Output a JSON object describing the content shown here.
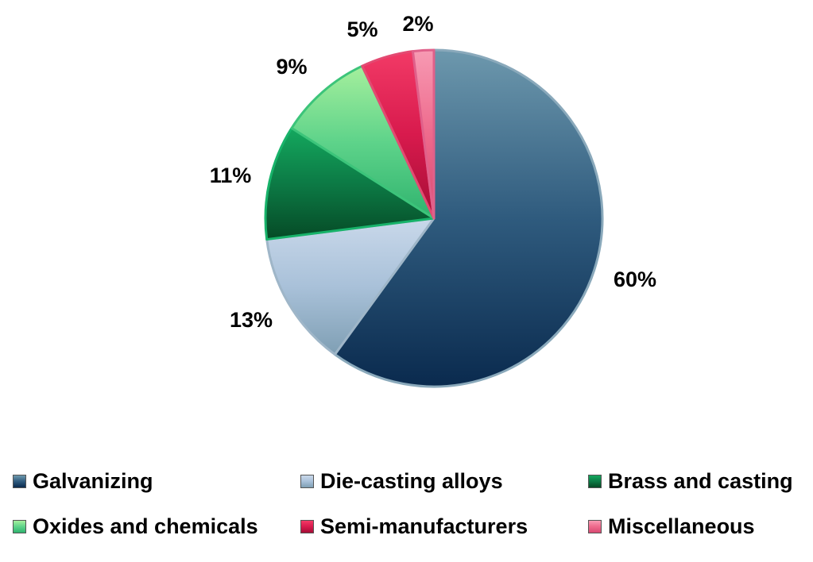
{
  "chart_data": {
    "type": "pie",
    "title": "",
    "slices": [
      {
        "label": "Galvanizing",
        "value": 60,
        "value_label": "60%",
        "color": "#2f5b7e",
        "color_light": "#6d98ad",
        "color_dark": "#0a2a4e",
        "edge": "#8aa9bb"
      },
      {
        "label": "Die-casting alloys",
        "value": 13,
        "value_label": "13%",
        "color": "#a9c1d9",
        "color_light": "#c9d8ea",
        "color_dark": "#7f9fb4",
        "edge": "#9fb6c8"
      },
      {
        "label": "Brass and casting",
        "value": 11,
        "value_label": "11%",
        "color": "#0c7a45",
        "color_light": "#14a85e",
        "color_dark": "#064a26",
        "edge": "#18b36a"
      },
      {
        "label": "Oxides and chemicals",
        "value": 9,
        "value_label": "9%",
        "color": "#5ed38a",
        "color_light": "#a5ef9d",
        "color_dark": "#2fb36e",
        "edge": "#3cc47a"
      },
      {
        "label": "Semi-manufacturers",
        "value": 5,
        "value_label": "5%",
        "color": "#d81a4d",
        "color_light": "#f23a66",
        "color_dark": "#a50e36",
        "edge": "#e34a72"
      },
      {
        "label": "Miscellaneous",
        "value": 2,
        "value_label": "2%",
        "color": "#ee6a8c",
        "color_light": "#f79ab3",
        "color_dark": "#d84a72",
        "edge": "#e0608a"
      }
    ],
    "legend_position": "bottom"
  }
}
